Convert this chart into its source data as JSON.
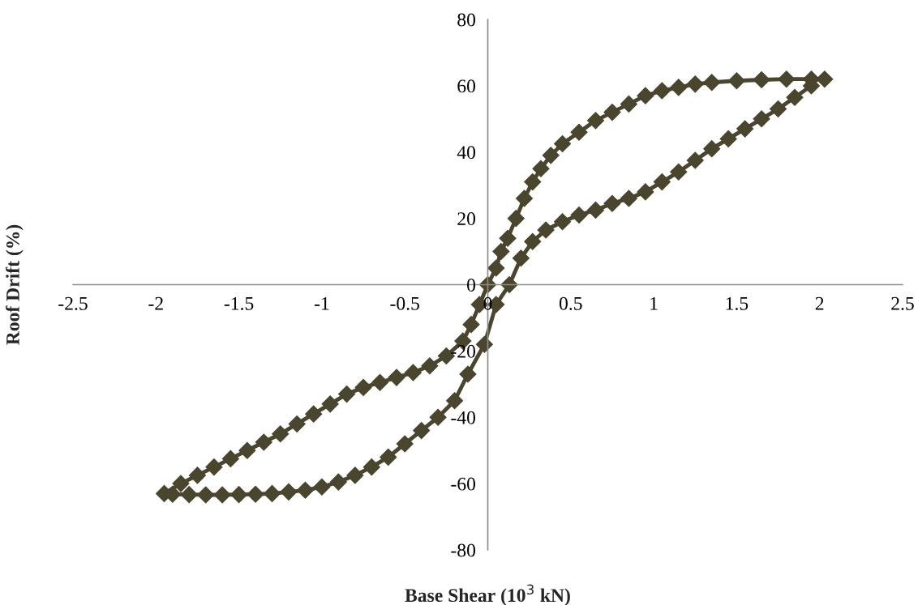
{
  "chart_data": {
    "type": "line",
    "xlabel": "Base Shear (10$^{3}$ kN)",
    "ylabel": "Roof Drift (%)",
    "xlim": [
      -2.5,
      2.5
    ],
    "xticks": [
      -2.5,
      -2,
      -1.5,
      -1,
      -0.5,
      0,
      0.5,
      1,
      1.5,
      2,
      2.5
    ],
    "ylim": [
      -80,
      80
    ],
    "yticks": [
      -80,
      -60,
      -40,
      -20,
      0,
      20,
      40,
      60,
      80
    ],
    "grid": false,
    "legend": false,
    "marker": "diamond",
    "line_style": "solid",
    "series": [
      {
        "color": "#4a452e",
        "x": [
          -1.95,
          -1.85,
          -1.75,
          -1.65,
          -1.55,
          -1.45,
          -1.35,
          -1.25,
          -1.15,
          -1.05,
          -0.95,
          -0.85,
          -0.75,
          -0.65,
          -0.55,
          -0.45,
          -0.35,
          -0.25,
          -0.15,
          -0.1,
          -0.05,
          0,
          0.05,
          0.08,
          0.12,
          0.17,
          0.22,
          0.27,
          0.32,
          0.38,
          0.45,
          0.55,
          0.65,
          0.75,
          0.85,
          0.95,
          1.05,
          1.15,
          1.25,
          1.35,
          1.5,
          1.65,
          1.8,
          1.95,
          2.03
        ],
        "values": [
          -63,
          -60,
          -57.5,
          -55,
          -52.5,
          -50,
          -47.5,
          -45,
          -42,
          -39,
          -36,
          -33,
          -31,
          -29.5,
          -28,
          -26.5,
          -24.5,
          -21.5,
          -17,
          -12,
          -6,
          0,
          5,
          10,
          14,
          20,
          26,
          31,
          35,
          39,
          42.5,
          46,
          49.5,
          52,
          54.5,
          57,
          58.5,
          59.5,
          60.5,
          61,
          61.5,
          61.8,
          62,
          62,
          62
        ]
      },
      {
        "color": "#4a452e",
        "x": [
          -1.9,
          -1.8,
          -1.7,
          -1.6,
          -1.5,
          -1.4,
          -1.3,
          -1.2,
          -1.1,
          -1.0,
          -0.9,
          -0.8,
          -0.7,
          -0.6,
          -0.5,
          -0.4,
          -0.3,
          -0.2,
          -0.12,
          -0.02,
          0.05,
          0.13,
          0.2,
          0.27,
          0.35,
          0.45,
          0.55,
          0.65,
          0.75,
          0.85,
          0.95,
          1.05,
          1.15,
          1.25,
          1.35,
          1.45,
          1.55,
          1.65,
          1.75,
          1.85,
          1.95
        ],
        "values": [
          -63.2,
          -63.3,
          -63.4,
          -63.4,
          -63.3,
          -63.2,
          -63,
          -62.5,
          -62,
          -61,
          -59.5,
          -57.5,
          -55,
          -52,
          -48,
          -44,
          -40,
          -35,
          -27,
          -18,
          -6,
          0,
          8,
          13,
          16.5,
          19,
          21,
          22.5,
          24.5,
          26,
          28,
          31,
          34,
          37.5,
          41,
          44,
          47,
          50,
          53,
          56.5,
          60
        ]
      }
    ]
  }
}
